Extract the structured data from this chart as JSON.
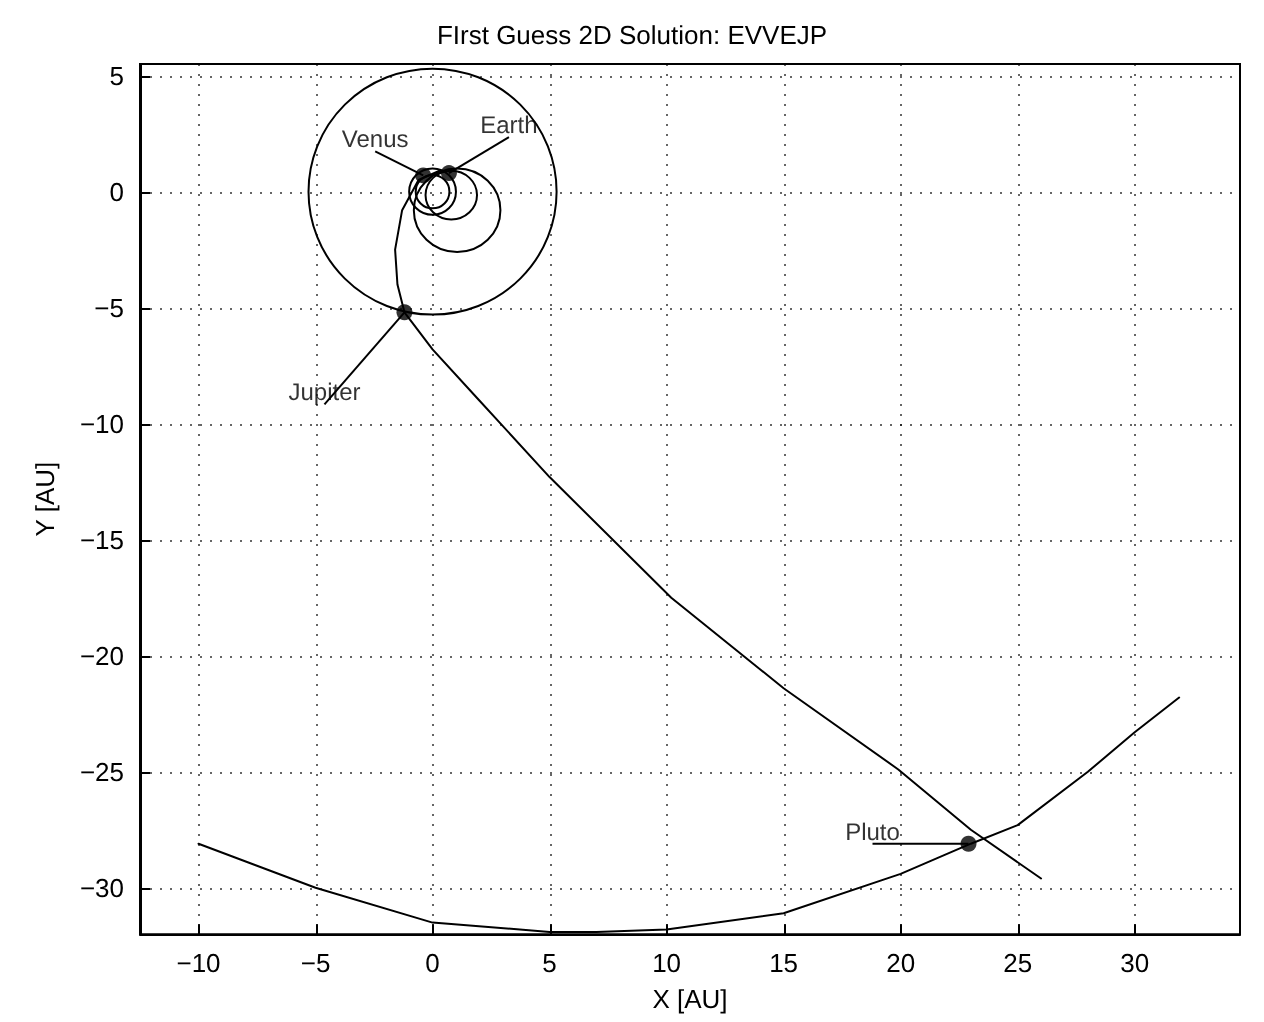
{
  "chart_data": {
    "type": "line",
    "title": "FIrst Guess 2D Solution: EVVEJP",
    "xlabel": "X [AU]",
    "ylabel": "Y [AU]",
    "xlim": [
      -12.5,
      34.5
    ],
    "ylim": [
      -32,
      5.5
    ],
    "xticks": [
      -10,
      -5,
      0,
      5,
      10,
      15,
      20,
      25,
      30
    ],
    "yticks": [
      -30,
      -25,
      -20,
      -15,
      -10,
      -5,
      0,
      5
    ],
    "grid": true,
    "marker": "none",
    "line_style": "solid",
    "series": [
      {
        "color": "#000000",
        "x": [
          0.3,
          -0.6,
          -1.3,
          -1.6,
          -1.5,
          -1.2,
          0,
          2,
          5,
          10.2,
          15,
          19.9,
          23,
          26
        ],
        "values": [
          0.9,
          0.5,
          -0.8,
          -2.5,
          -4,
          -5.2,
          -6.8,
          -9,
          -12.3,
          -17.5,
          -21.4,
          -24.9,
          -27.5,
          -29.6
        ]
      },
      {
        "color": "#000000",
        "x": [
          -10,
          -5,
          0,
          5,
          7,
          10,
          15,
          20,
          23,
          25,
          28,
          30,
          31.9
        ],
        "values": [
          -28.1,
          -30,
          -31.5,
          -31.9,
          -31.9,
          -31.8,
          -31.1,
          -29.4,
          -28.1,
          -27.3,
          -25,
          -23.3,
          -21.8
        ]
      },
      {
        "type": "scatter",
        "color": "#000000",
        "marker": "circle",
        "x": [
          -0.4,
          0.7,
          -1.2,
          22.9
        ],
        "values": [
          0.7,
          0.8,
          -5.2,
          -28.1
        ]
      }
    ],
    "annotations": [
      {
        "text": "Venus",
        "x": -0.4,
        "y": 0.7
      },
      {
        "text": "Earth",
        "x": 0.7,
        "y": 0.8
      },
      {
        "text": "Jupiter",
        "x": -1.2,
        "y": -5.2
      },
      {
        "text": "Pluto",
        "x": 22.9,
        "y": -28.1
      }
    ]
  }
}
